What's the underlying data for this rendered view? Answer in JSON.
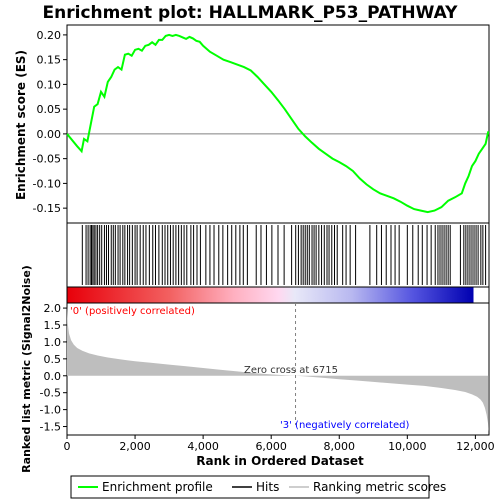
{
  "title": "Enrichment plot: HALLMARK_P53_PATHWAY",
  "colors": {
    "es_curve": "#00ff00",
    "hits": "#000000",
    "metric_fill": "#bebebe",
    "zero_line": "#808080",
    "positive_label": "#ff0000",
    "negative_label": "#0000ff"
  },
  "legend": {
    "items": [
      {
        "label": "Enrichment profile",
        "icon": "green-line"
      },
      {
        "label": "Hits",
        "icon": "black-line"
      },
      {
        "label": "Ranking metric scores",
        "icon": "gray-line"
      }
    ]
  },
  "chart_data": [
    {
      "type": "line",
      "panel": "enrichment-profile",
      "ylabel": "Enrichment score (ES)",
      "xlim": [
        0,
        12400
      ],
      "ylim": [
        -0.18,
        0.22
      ],
      "yticks": [
        "0.20",
        "0.15",
        "0.10",
        "0.05",
        "0.00",
        "-0.05",
        "-0.10",
        "-0.15"
      ],
      "ytick_values": [
        0.2,
        0.15,
        0.1,
        0.05,
        0.0,
        -0.05,
        -0.1,
        -0.15
      ],
      "x": [
        0,
        300,
        430,
        500,
        600,
        700,
        800,
        900,
        1000,
        1100,
        1200,
        1300,
        1400,
        1500,
        1600,
        1700,
        1800,
        1900,
        2000,
        2100,
        2200,
        2300,
        2400,
        2500,
        2600,
        2700,
        2800,
        2900,
        3000,
        3100,
        3200,
        3300,
        3400,
        3500,
        3600,
        3700,
        3800,
        3900,
        4000,
        4200,
        4400,
        4600,
        4800,
        5000,
        5200,
        5400,
        5600,
        5800,
        6000,
        6200,
        6400,
        6600,
        6800,
        7000,
        7200,
        7400,
        7600,
        7800,
        8000,
        8200,
        8400,
        8600,
        8800,
        9000,
        9200,
        9400,
        9600,
        9800,
        10000,
        10200,
        10400,
        10600,
        10800,
        11000,
        11200,
        11400,
        11600,
        11700,
        11800,
        11900,
        12000,
        12100,
        12200,
        12300,
        12380
      ],
      "y": [
        0.0,
        -0.025,
        -0.035,
        -0.01,
        -0.015,
        0.02,
        0.055,
        0.06,
        0.085,
        0.075,
        0.105,
        0.115,
        0.13,
        0.135,
        0.13,
        0.16,
        0.162,
        0.158,
        0.17,
        0.172,
        0.168,
        0.178,
        0.18,
        0.185,
        0.18,
        0.19,
        0.19,
        0.198,
        0.2,
        0.198,
        0.2,
        0.198,
        0.195,
        0.192,
        0.196,
        0.193,
        0.188,
        0.186,
        0.178,
        0.166,
        0.158,
        0.15,
        0.145,
        0.14,
        0.135,
        0.128,
        0.115,
        0.1,
        0.085,
        0.068,
        0.05,
        0.03,
        0.01,
        -0.005,
        -0.018,
        -0.03,
        -0.04,
        -0.05,
        -0.057,
        -0.065,
        -0.075,
        -0.09,
        -0.102,
        -0.112,
        -0.12,
        -0.125,
        -0.13,
        -0.137,
        -0.145,
        -0.152,
        -0.155,
        -0.158,
        -0.155,
        -0.148,
        -0.135,
        -0.128,
        -0.12,
        -0.1,
        -0.085,
        -0.065,
        -0.055,
        -0.04,
        -0.03,
        -0.02,
        0.005
      ]
    },
    {
      "type": "hits",
      "panel": "hits",
      "x": [
        450,
        560,
        620,
        680,
        720,
        760,
        800,
        850,
        900,
        960,
        1020,
        1100,
        1160,
        1220,
        1300,
        1360,
        1420,
        1500,
        1560,
        1640,
        1700,
        1780,
        1840,
        1920,
        2000,
        2060,
        2150,
        2240,
        2320,
        2420,
        2520,
        2600,
        2700,
        2800,
        2880,
        2960,
        3040,
        3120,
        3200,
        3280,
        3360,
        3440,
        3520,
        3640,
        3720,
        3820,
        3920,
        4080,
        4200,
        4320,
        4460,
        4580,
        4720,
        4840,
        4960,
        5080,
        5180,
        5300,
        5560,
        5700,
        5860,
        6020,
        6200,
        6380,
        6600,
        6720,
        6800,
        6880,
        6940,
        7000,
        7060,
        7120,
        7200,
        7260,
        7320,
        7400,
        7480,
        7560,
        7640,
        7700,
        7780,
        7860,
        7940,
        8100,
        8200,
        8320,
        8480,
        8900,
        9100,
        9240,
        9380,
        9520,
        9640,
        9760,
        10000,
        10160,
        10320,
        10440,
        10580,
        10700,
        10820,
        10900,
        10960,
        11020,
        11080,
        11140,
        11200,
        11260,
        11560,
        11660,
        11720,
        11780,
        11840,
        11900,
        11960,
        12020,
        12080,
        12160,
        12220,
        12300
      ]
    },
    {
      "type": "area",
      "panel": "ranked-list-metric",
      "ylabel": "Ranked list metric (Signal2Noise)",
      "xlabel": "Rank in Ordered Dataset",
      "xlim": [
        0,
        12400
      ],
      "ylim": [
        -1.75,
        2.15
      ],
      "xticks": [
        "0",
        "2,000",
        "4,000",
        "6,000",
        "8,000",
        "10,000",
        "12,000"
      ],
      "xtick_values": [
        0,
        2000,
        4000,
        6000,
        8000,
        10000,
        12000
      ],
      "yticks": [
        "2.0",
        "1.5",
        "1.0",
        "0.5",
        "0.0",
        "-0.5",
        "-1.0",
        "-1.5"
      ],
      "ytick_values": [
        2.0,
        1.5,
        1.0,
        0.5,
        0.0,
        -0.5,
        -1.0,
        -1.5
      ],
      "x": [
        0,
        20,
        60,
        120,
        200,
        300,
        450,
        650,
        900,
        1200,
        1600,
        2000,
        2500,
        3000,
        3500,
        4000,
        4500,
        5000,
        5500,
        6000,
        6400,
        6715,
        7000,
        7500,
        8000,
        8500,
        9000,
        9500,
        10000,
        10500,
        11000,
        11400,
        11700,
        11900,
        12050,
        12150,
        12220,
        12280,
        12330,
        12370,
        12390
      ],
      "y": [
        2.05,
        1.55,
        1.25,
        1.05,
        0.92,
        0.82,
        0.74,
        0.66,
        0.6,
        0.54,
        0.48,
        0.43,
        0.38,
        0.33,
        0.28,
        0.23,
        0.18,
        0.13,
        0.08,
        0.04,
        0.015,
        0.0,
        -0.02,
        -0.06,
        -0.1,
        -0.14,
        -0.18,
        -0.22,
        -0.26,
        -0.3,
        -0.36,
        -0.42,
        -0.48,
        -0.55,
        -0.62,
        -0.7,
        -0.8,
        -0.95,
        -1.15,
        -1.4,
        -1.65
      ],
      "annotations": {
        "positive": "'0' (positively correlated)",
        "negative": "'3' (negatively correlated)",
        "zero_cross_label": "Zero cross at 6715",
        "zero_cross_x": 6715
      }
    }
  ]
}
